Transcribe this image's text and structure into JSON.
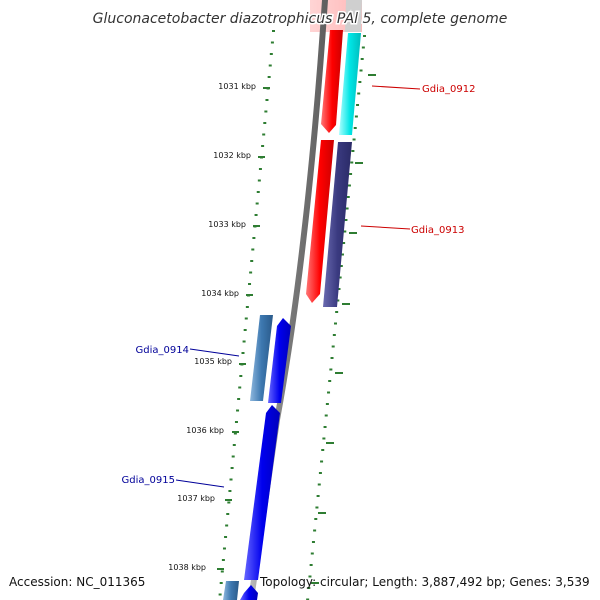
{
  "title": "Gluconacetobacter diazotrophicus PAl 5, complete genome",
  "accession": "Accession: NC_011365",
  "topology": "Topology: circular; Length: 3,887,492 bp; Genes: 3,539",
  "ticks": [
    "1031 kbp",
    "1032 kbp",
    "1033 kbp",
    "1034 kbp",
    "1035 kbp",
    "1036 kbp",
    "1037 kbp",
    "1038 kbp"
  ],
  "genes": [
    {
      "name": "Gdia_0912",
      "strand": "reverse",
      "color": "#cc0000"
    },
    {
      "name": "Gdia_0913",
      "strand": "reverse",
      "color": "#cc0000"
    },
    {
      "name": "Gdia_0914",
      "strand": "forward",
      "color": "#000099"
    },
    {
      "name": "Gdia_0915",
      "strand": "forward",
      "color": "#000099"
    }
  ],
  "colors": {
    "backbone": "#7a7a7a",
    "tick": "#2e7d32",
    "reverse_cds": "#ff0000",
    "forward_cds": "#0000ee",
    "cyan_feature": "#00e5e5",
    "purple_feature": "#3a3a80",
    "steel_feature": "#3d78b0"
  }
}
